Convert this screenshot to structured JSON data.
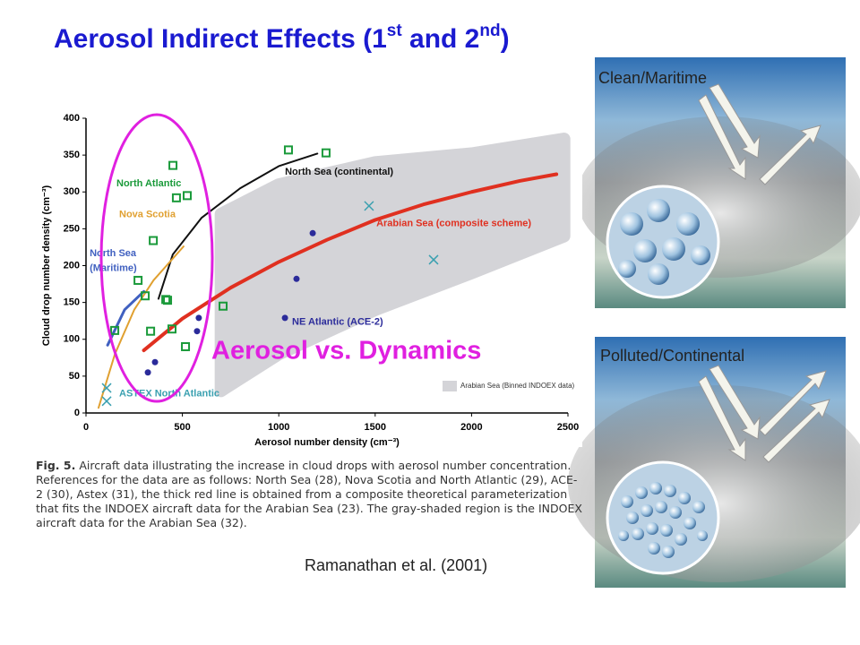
{
  "slide": {
    "title_parts": [
      "Aerosol Indirect Effects (1",
      "st",
      " and 2",
      "nd",
      ")"
    ],
    "overlay_text": "Aerosol vs. Dynamics",
    "citation": "Ramanathan et al. (2001)",
    "panels": [
      "Clean/Maritime",
      "Polluted/Continental"
    ],
    "caption": {
      "label": "Fig. 5.",
      "text": "Aircraft data illustrating the increase in cloud drops with aerosol number concentration. References for the data are as follows: North Sea (28), Nova Scotia and North Atlantic (29), ACE-2 (30), Astex (31), the thick red line is obtained from a composite theoretical parameterization that fits the INDOEX aircraft data for the Arabian Sea (23). The gray-shaded region is the INDOEX aircraft data for the Arabian Sea (32)."
    }
  },
  "chart_data": {
    "type": "scatter",
    "x_label": "Aerosol number density (cm⁻³)",
    "y_label": "Cloud drop number density (cm⁻³)",
    "xlim": [
      0,
      2500
    ],
    "xticks": [
      0,
      500,
      1000,
      1500,
      2000,
      2500
    ],
    "ylim": [
      0,
      400
    ],
    "yticks": [
      0,
      50,
      100,
      150,
      200,
      250,
      300,
      350,
      400
    ],
    "series": [
      {
        "name": "Arabian Sea (Binned INDOEX data)",
        "marker": "band",
        "color": "#d4d4d8",
        "x": [
          700,
          1000,
          1500,
          2000,
          2480
        ],
        "upper": [
          270,
          310,
          340,
          352,
          372
        ],
        "lower": [
          30,
          80,
          140,
          190,
          240
        ]
      },
      {
        "marker": "line",
        "color": "#e03020",
        "width": 4,
        "x": [
          300,
          500,
          750,
          1000,
          1250,
          1500,
          1750,
          2000,
          2250,
          2440
        ],
        "values": [
          85,
          128,
          170,
          205,
          235,
          262,
          283,
          300,
          315,
          324
        ]
      },
      {
        "marker": "line",
        "color": "#111111",
        "width": 2,
        "x": [
          376,
          450,
          600,
          800,
          1000,
          1200
        ],
        "values": [
          155,
          215,
          265,
          305,
          335,
          352
        ]
      },
      {
        "marker": "line",
        "color": "#e0a030",
        "width": 2,
        "x": [
          65,
          150,
          250,
          350,
          506
        ],
        "values": [
          7,
          80,
          140,
          180,
          226
        ]
      },
      {
        "marker": "line",
        "color": "#4060c0",
        "width": 3,
        "x": [
          112,
          200,
          300
        ],
        "values": [
          92,
          140,
          165
        ]
      },
      {
        "marker": "square",
        "color": "#1a9a3a",
        "x": [
          1050,
          1245,
          451,
          469,
          525,
          349,
          270,
          307,
          414,
          423,
          335,
          446,
          711,
          516,
          149
        ],
        "values": [
          357,
          353,
          336,
          292,
          295,
          234,
          180,
          159,
          154,
          153,
          111,
          114,
          145,
          90,
          112
        ]
      },
      {
        "marker": "circle",
        "color": "#2b2b9a",
        "x": [
          1176,
          1092,
          1032,
          585,
          576,
          358,
          321
        ],
        "values": [
          244,
          182,
          129,
          129,
          111,
          69,
          55
        ]
      },
      {
        "marker": "x",
        "color": "#3aa0b0",
        "x": [
          1468,
          1803,
          107,
          107
        ],
        "values": [
          281,
          208,
          34,
          16
        ]
      }
    ],
    "annotations": [
      {
        "text": "North Atlantic",
        "x": 158,
        "y": 311,
        "color": "#1a9a3a"
      },
      {
        "text": "Nova Scotia",
        "x": 172,
        "y": 269,
        "color": "#e0a030"
      },
      {
        "text": "North Sea",
        "x": 19,
        "y": 216,
        "color": "#4060c0"
      },
      {
        "text": "(Maritime)",
        "x": 19,
        "y": 196,
        "color": "#4060c0"
      },
      {
        "text": "North Sea (continental)",
        "x": 1032,
        "y": 327,
        "color": "#111111"
      },
      {
        "text": "Arabian Sea (composite scheme)",
        "x": 1506,
        "y": 257,
        "color": "#e03020"
      },
      {
        "text": "NE Atlantic (ACE-2)",
        "x": 1069,
        "y": 123,
        "color": "#2b2b9a"
      },
      {
        "text": "ASTEX North Atlantic",
        "x": 172,
        "y": 26,
        "color": "#3aa0b0"
      }
    ],
    "legend": "lower right"
  }
}
